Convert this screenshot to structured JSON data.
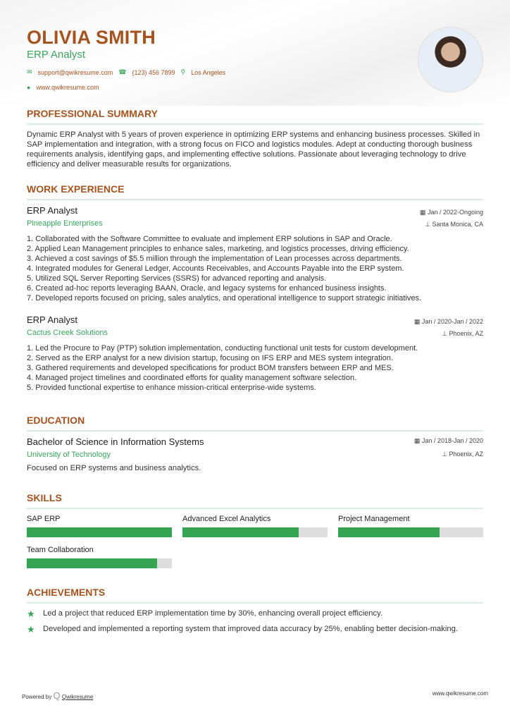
{
  "header": {
    "name": "OLIVIA SMITH",
    "title": "ERP Analyst",
    "email": "support@qwikresume.com",
    "phone": "(123) 456 7899",
    "location": "Los Angeles",
    "website": "www.qwikresume.com"
  },
  "summary": {
    "heading": "PROFESSIONAL SUMMARY",
    "text": "Dynamic ERP Analyst with 5 years of proven experience in optimizing ERP systems and enhancing business processes. Skilled in SAP implementation and integration, with a strong focus on FICO and logistics modules. Adept at conducting thorough business requirements analysis, identifying gaps, and implementing effective solutions. Passionate about leveraging technology to drive efficiency and deliver measurable results for organizations."
  },
  "experience": {
    "heading": "WORK EXPERIENCE",
    "jobs": [
      {
        "title": "ERP Analyst",
        "company": "Pineapple Enterprises",
        "dates": "Jan / 2022-Ongoing",
        "location": "Santa Monica, CA",
        "bullets": [
          "1. Collaborated with the Software Committee to evaluate and implement ERP solutions in SAP and Oracle.",
          "2. Applied Lean Management principles to enhance sales, marketing, and logistics processes, driving efficiency.",
          "3. Achieved a cost savings of $5.5 million through the implementation of Lean processes across departments.",
          "4. Integrated modules for General Ledger, Accounts Receivables, and Accounts Payable into the ERP system.",
          "5. Utilized SQL Server Reporting Services (SSRS) for advanced reporting and analysis.",
          "6. Created ad-hoc reports leveraging BAAN, Oracle, and legacy systems for enhanced business insights.",
          "7. Developed reports focused on pricing, sales analytics, and operational intelligence to support strategic initiatives."
        ]
      },
      {
        "title": "ERP Analyst",
        "company": "Cactus Creek Solutions",
        "dates": "Jan / 2020-Jan / 2022",
        "location": "Phoenix, AZ",
        "bullets": [
          "1. Led the Procure to Pay (PTP) solution implementation, conducting functional unit tests for custom development.",
          "2. Served as the ERP analyst for a new division startup, focusing on IFS ERP and MES system integration.",
          "3. Gathered requirements and developed specifications for product BOM transfers between ERP and MES.",
          "4. Managed project timelines and coordinated efforts for quality management software selection.",
          "5. Provided functional expertise to enhance mission-critical enterprise-wide systems."
        ]
      }
    ]
  },
  "education": {
    "heading": "EDUCATION",
    "degree": "Bachelor of Science in Information Systems",
    "school": "University of Technology",
    "dates": "Jan / 2018-Jan / 2020",
    "location": "Phoenix, AZ",
    "note": "Focused on ERP systems and business analytics."
  },
  "skills": {
    "heading": "SKILLS",
    "items": [
      {
        "name": "SAP ERP",
        "level": 100
      },
      {
        "name": "Advanced Excel Analytics",
        "level": 80
      },
      {
        "name": "Project Management",
        "level": 70
      },
      {
        "name": "Team Collaboration",
        "level": 90
      }
    ]
  },
  "achievements": {
    "heading": "ACHIEVEMENTS",
    "items": [
      "Led a project that reduced ERP implementation time by 30%, enhancing overall project efficiency.",
      "Developed and implemented a reporting system that improved data accuracy by 25%, enabling better decision-making."
    ]
  },
  "footer": {
    "powered": "Powered by",
    "brand": "Qwikresume",
    "url": "www.qwikresume.com"
  },
  "colors": {
    "accent": "#a5531f",
    "green": "#3aa55b"
  }
}
